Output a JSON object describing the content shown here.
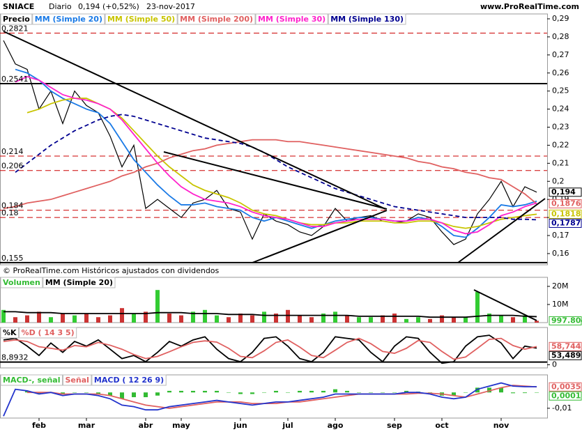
{
  "header": {
    "symbol": "SNIACE",
    "period": "Diario",
    "quote": "0,194 (+0,52%)",
    "date": "23-nov-2017",
    "site": "www.ProRealTime.com",
    "copyright": "© ProRealTime.com Históricos ajustados con dividendos"
  },
  "chart_data": [
    {
      "type": "line",
      "categories": [
        null,
        null,
        null,
        "feb",
        null,
        null,
        null,
        "mar",
        null,
        null,
        null,
        null,
        "abr",
        null,
        null,
        "may",
        null,
        null,
        null,
        null,
        "jun",
        null,
        null,
        null,
        "jul",
        null,
        null,
        null,
        "ago",
        null,
        null,
        null,
        null,
        "sep",
        null,
        null,
        null,
        "oct",
        null,
        null,
        null,
        null,
        "nov",
        null,
        null,
        null
      ],
      "ylim": [
        0.1538,
        0.2927
      ],
      "yticks": [
        {
          "value": 0.16,
          "label": "0,16"
        },
        {
          "value": 0.17,
          "label": "0,17"
        },
        {
          "value": 0.18,
          "label": "0,18"
        },
        {
          "value": 0.19,
          "label": "0,19"
        },
        {
          "value": 0.2,
          "label": "0,2"
        },
        {
          "value": 0.21,
          "label": "0,21"
        },
        {
          "value": 0.22,
          "label": "0,22"
        },
        {
          "value": 0.23,
          "label": "0,23"
        },
        {
          "value": 0.24,
          "label": "0,24"
        },
        {
          "value": 0.25,
          "label": "0,25"
        },
        {
          "value": 0.26,
          "label": "0,26"
        },
        {
          "value": 0.27,
          "label": "0,27"
        },
        {
          "value": 0.28,
          "label": "0,28"
        },
        {
          "value": 0.29,
          "label": "0,29"
        }
      ],
      "hlines": [
        {
          "value": 0.2821,
          "label": "0,2821",
          "style": "dashed",
          "color": "#cc0000"
        },
        {
          "value": 0.2541,
          "label": "0,2541",
          "style": "solid",
          "color": "#000000"
        },
        {
          "value": 0.214,
          "label": "0,214",
          "style": "dashed",
          "color": "#cc0000"
        },
        {
          "value": 0.206,
          "label": "0,206",
          "style": "dashed",
          "color": "#cc0000"
        },
        {
          "value": 0.184,
          "label": "0,184",
          "style": "dashed",
          "color": "#cc0000"
        },
        {
          "value": 0.18,
          "label": "0,18",
          "style": "dashed",
          "color": "#cc0000"
        },
        {
          "value": 0.155,
          "label": "0,155",
          "style": "solid",
          "color": "#000000"
        }
      ],
      "series": [
        {
          "name": "Precio",
          "color": "#000000",
          "style": "line",
          "last_label": "0,194",
          "values": [
            0.278,
            0.265,
            0.262,
            0.24,
            0.25,
            0.232,
            0.25,
            0.242,
            0.238,
            0.225,
            0.208,
            0.22,
            0.185,
            0.19,
            0.185,
            0.18,
            0.188,
            0.19,
            0.195,
            0.185,
            0.183,
            0.168,
            0.182,
            0.178,
            0.176,
            0.172,
            0.17,
            0.175,
            0.185,
            0.178,
            0.18,
            0.181,
            0.178,
            0.177,
            0.178,
            0.182,
            0.18,
            0.172,
            0.165,
            0.168,
            0.182,
            0.19,
            0.2,
            0.186,
            0.197,
            0.194
          ]
        },
        {
          "name": "MM (Simple 20)",
          "color": "#1a7ae6",
          "style": "line",
          "values": [
            null,
            0.262,
            0.26,
            0.256,
            0.25,
            0.246,
            0.243,
            0.24,
            0.238,
            0.232,
            0.222,
            0.212,
            0.205,
            0.198,
            0.192,
            0.187,
            0.187,
            0.188,
            0.186,
            0.185,
            0.184,
            0.18,
            0.178,
            0.18,
            0.178,
            0.176,
            0.174,
            0.176,
            0.178,
            0.179,
            0.18,
            0.18,
            0.179,
            0.178,
            0.178,
            0.18,
            0.179,
            0.175,
            0.17,
            0.169,
            0.174,
            0.18,
            0.187,
            0.186,
            0.187,
            0.189
          ]
        },
        {
          "name": "MM (Simple 50)",
          "color": "#c8c400",
          "style": "line",
          "last_label": "0,1818",
          "values": [
            null,
            null,
            0.238,
            0.24,
            0.243,
            0.245,
            0.246,
            0.246,
            0.243,
            0.24,
            0.235,
            0.228,
            0.221,
            0.214,
            0.208,
            0.203,
            0.198,
            0.195,
            0.193,
            0.191,
            0.188,
            0.184,
            0.182,
            0.181,
            0.179,
            0.177,
            0.176,
            0.176,
            0.177,
            0.177,
            0.178,
            0.178,
            0.178,
            0.177,
            0.177,
            0.178,
            0.178,
            0.177,
            0.175,
            0.174,
            0.175,
            0.177,
            0.179,
            0.18,
            0.181,
            0.1818
          ]
        },
        {
          "name": "MM (Simple 200)",
          "color": "#e06060",
          "style": "line",
          "last_label": "0,1876",
          "values": [
            0.185,
            0.186,
            0.188,
            0.189,
            0.19,
            0.192,
            0.194,
            0.196,
            0.198,
            0.2,
            0.203,
            0.205,
            0.208,
            0.21,
            0.213,
            0.215,
            0.217,
            0.218,
            0.22,
            0.221,
            0.222,
            0.223,
            0.223,
            0.223,
            0.222,
            0.222,
            0.221,
            0.22,
            0.219,
            0.218,
            0.217,
            0.216,
            0.215,
            0.214,
            0.213,
            0.211,
            0.21,
            0.208,
            0.207,
            0.205,
            0.204,
            0.202,
            0.201,
            0.197,
            0.193,
            0.1876
          ]
        },
        {
          "name": "MM (Simple 30)",
          "color": "#ff22cc",
          "style": "line",
          "values": [
            null,
            0.255,
            0.258,
            0.256,
            0.252,
            0.248,
            0.246,
            0.245,
            0.243,
            0.24,
            0.234,
            0.226,
            0.218,
            0.21,
            0.203,
            0.197,
            0.193,
            0.19,
            0.189,
            0.188,
            0.186,
            0.183,
            0.181,
            0.18,
            0.179,
            0.177,
            0.175,
            0.175,
            0.177,
            0.178,
            0.179,
            0.179,
            0.179,
            0.178,
            0.178,
            0.179,
            0.179,
            0.177,
            0.173,
            0.171,
            0.172,
            0.176,
            0.181,
            0.183,
            0.186,
            0.188
          ]
        },
        {
          "name": "MM (Simple 130)",
          "color": "#000090",
          "style": "dashed",
          "last_label": "0,1787",
          "values": [
            null,
            0.205,
            0.21,
            0.215,
            0.22,
            0.224,
            0.228,
            0.231,
            0.234,
            0.236,
            0.237,
            0.236,
            0.234,
            0.232,
            0.23,
            0.228,
            0.226,
            0.224,
            0.223,
            0.222,
            0.221,
            0.219,
            0.216,
            0.212,
            0.208,
            0.205,
            0.202,
            0.199,
            0.196,
            0.194,
            0.192,
            0.19,
            0.188,
            0.186,
            0.185,
            0.184,
            0.183,
            0.182,
            0.181,
            0.18,
            0.18,
            0.18,
            0.18,
            0.179,
            0.179,
            0.1787
          ]
        }
      ]
    },
    {
      "type": "bar",
      "ylim": [
        0,
        25000000
      ],
      "yticks": [
        {
          "value": 10000000,
          "label": "10M"
        },
        {
          "value": 20000000,
          "label": "20M"
        }
      ],
      "series": [
        {
          "name": "Volumen",
          "color": "#33bb33",
          "up_color": "#33cc33",
          "down_color": "#cc3333",
          "style": "bar",
          "last_label": "997.804",
          "values": [
            7000000,
            3000000,
            4000000,
            6000000,
            3000000,
            5000000,
            4000000,
            5000000,
            3000000,
            4000000,
            8000000,
            5000000,
            6000000,
            18000000,
            5000000,
            4000000,
            6000000,
            7000000,
            4000000,
            3000000,
            5000000,
            4000000,
            6000000,
            5000000,
            7000000,
            4000000,
            3000000,
            5000000,
            6000000,
            4000000,
            3000000,
            3000000,
            4000000,
            5000000,
            2000000,
            3000000,
            2000000,
            4000000,
            3000000,
            3000000,
            17000000,
            5000000,
            4000000,
            3000000,
            4000000,
            997804
          ]
        },
        {
          "name": "MM (Simple 20)",
          "color": "#000000",
          "style": "line",
          "values": [
            6000000,
            6000000,
            5500000,
            5500000,
            5500000,
            5000000,
            5000000,
            5000000,
            5000000,
            5000000,
            5000000,
            5000000,
            5000000,
            5500000,
            5500000,
            5500000,
            5000000,
            5000000,
            5000000,
            4500000,
            4500000,
            4500000,
            4000000,
            4000000,
            4000000,
            4000000,
            4000000,
            4000000,
            4000000,
            4000000,
            3500000,
            3500000,
            3500000,
            3500000,
            3500000,
            3500000,
            3000000,
            3000000,
            3000000,
            3000000,
            3500000,
            4000000,
            4000000,
            4000000,
            3500000,
            3300000
          ]
        }
      ]
    },
    {
      "type": "line",
      "ylim": [
        -10,
        120
      ],
      "yticks": [
        0
      ],
      "hlines": [
        {
          "value": 8.8932,
          "label": "8,8932",
          "style": "solid",
          "color": "#000000"
        }
      ],
      "series": [
        {
          "name": "%K",
          "color": "#000000",
          "style": "line",
          "last_label": "53,489",
          "values": [
            80,
            85,
            60,
            30,
            70,
            40,
            75,
            60,
            80,
            50,
            20,
            30,
            10,
            40,
            75,
            60,
            80,
            90,
            50,
            20,
            10,
            40,
            85,
            90,
            60,
            20,
            10,
            40,
            90,
            85,
            80,
            40,
            10,
            60,
            90,
            85,
            40,
            5,
            10,
            60,
            90,
            95,
            70,
            20,
            60,
            53.489
          ]
        },
        {
          "name": "%D ( 14 3 5)",
          "color": "#e06060",
          "style": "line",
          "last_label": "58,744",
          "values": [
            75,
            80,
            75,
            58,
            53,
            47,
            62,
            58,
            72,
            63,
            50,
            33,
            20,
            27,
            42,
            58,
            72,
            77,
            73,
            53,
            27,
            23,
            45,
            72,
            80,
            57,
            30,
            23,
            47,
            72,
            85,
            68,
            43,
            37,
            53,
            78,
            72,
            43,
            18,
            25,
            53,
            82,
            85,
            62,
            50,
            58.744
          ]
        }
      ]
    },
    {
      "type": "line",
      "ylim": [
        -0.0162,
        0.0111
      ],
      "yticks": [
        {
          "value": -0.01,
          "label": "-0,01"
        }
      ],
      "series": [
        {
          "name": "MACD-, señal",
          "color": "#33bb33",
          "style": "bar",
          "last_label": "0,0001",
          "values": [
            null,
            null,
            0.001,
            -0.001,
            0,
            -0.001,
            0,
            0,
            -0.001,
            -0.002,
            -0.004,
            -0.003,
            -0.003,
            -0.002,
            0.001,
            0.001,
            0.001,
            0.001,
            0.001,
            0,
            -0.001,
            -0.001,
            0,
            0.001,
            0,
            0.001,
            0.001,
            0.001,
            0.002,
            0.001,
            0,
            0,
            0,
            0,
            0.001,
            0.0005,
            -0.0005,
            -0.002,
            -0.002,
            0,
            0.003,
            0.003,
            0.003,
            -0.0005,
            -0.0004,
            0.0001
          ]
        },
        {
          "name": "Señal",
          "color": "#e06060",
          "style": "line",
          "last_label": "0,0035",
          "values": [
            null,
            null,
            0,
            0,
            0,
            -0.001,
            -0.001,
            -0.001,
            -0.001,
            -0.002,
            -0.004,
            -0.006,
            -0.008,
            -0.009,
            -0.01,
            -0.009,
            -0.008,
            -0.007,
            -0.006,
            -0.006,
            -0.006,
            -0.007,
            -0.007,
            -0.007,
            -0.006,
            -0.006,
            -0.005,
            -0.004,
            -0.003,
            -0.002,
            -0.001,
            -0.001,
            -0.001,
            -0.001,
            -0.001,
            -0.0005,
            -0.0005,
            -0.001,
            -0.002,
            -0.003,
            -0.001,
            0.001,
            0.003,
            0.0045,
            0.004,
            0.0035
          ]
        },
        {
          "name": "MACD ( 12 26 9)",
          "color": "#2233cc",
          "style": "line",
          "values": [
            -0.015,
            0.002,
            0.001,
            -0.001,
            0,
            -0.002,
            -0.001,
            -0.001,
            -0.002,
            -0.004,
            -0.008,
            -0.009,
            -0.011,
            -0.011,
            -0.009,
            -0.008,
            -0.007,
            -0.006,
            -0.005,
            -0.006,
            -0.007,
            -0.008,
            -0.007,
            -0.006,
            -0.006,
            -0.005,
            -0.004,
            -0.003,
            -0.001,
            -0.001,
            -0.001,
            -0.001,
            -0.001,
            -0.001,
            0,
            0,
            -0.001,
            -0.003,
            -0.004,
            -0.003,
            0.002,
            0.004,
            0.006,
            0.004,
            0.0036,
            0.0036
          ]
        }
      ]
    }
  ]
}
